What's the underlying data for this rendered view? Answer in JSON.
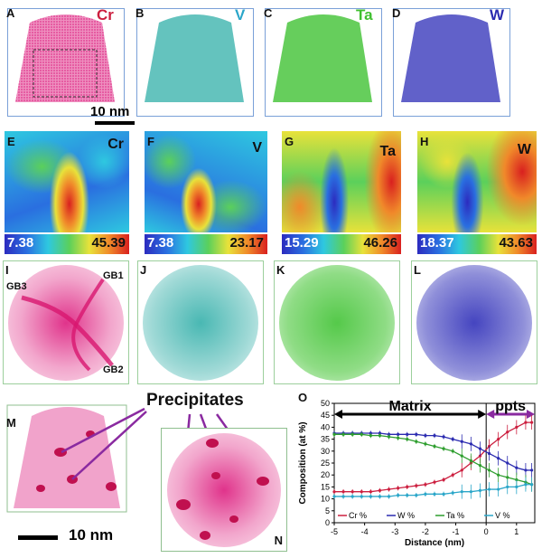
{
  "panel_labels": {
    "A": "A",
    "B": "B",
    "C": "C",
    "D": "D",
    "E": "E",
    "F": "F",
    "G": "G",
    "H": "H",
    "I": "I",
    "J": "J",
    "K": "K",
    "L": "L",
    "M": "M",
    "N": "N",
    "O": "O"
  },
  "elements": {
    "cr": {
      "name": "Cr",
      "color": "#cc1f3f"
    },
    "v": {
      "name": "V",
      "color": "#2aa6c9"
    },
    "ta": {
      "name": "Ta",
      "color": "#3fbf2f"
    },
    "w": {
      "name": "W",
      "color": "#2b2bb0"
    }
  },
  "scale_bar_top": "10 nm",
  "scale_bar_bottom": "10 nm",
  "colorbars": {
    "cr": {
      "min": "7.38",
      "max": "45.39"
    },
    "v": {
      "min": "7.38",
      "max": "23.17"
    },
    "ta": {
      "min": "15.29",
      "max": "46.26"
    },
    "w": {
      "min": "18.37",
      "max": "43.63"
    }
  },
  "grain_boundaries": {
    "gb1": "GB1",
    "gb2": "GB2",
    "gb3": "GB3"
  },
  "precipitates_label": "Precipitates",
  "chart_data": {
    "type": "line",
    "xlabel": "Distance (nm)",
    "ylabel": "Composition (at %)",
    "xlim": [
      -5,
      1.6
    ],
    "ylim": [
      0,
      50
    ],
    "xticks": [
      -5,
      -4,
      -3,
      -2,
      -1,
      0,
      1
    ],
    "yticks": [
      0,
      5,
      10,
      15,
      20,
      25,
      30,
      35,
      40,
      45,
      50
    ],
    "annotations": {
      "matrix": "Matrix",
      "ppts": "ppts"
    },
    "x": [
      -5.0,
      -4.7,
      -4.4,
      -4.1,
      -3.8,
      -3.5,
      -3.2,
      -2.9,
      -2.6,
      -2.3,
      -2.0,
      -1.7,
      -1.4,
      -1.1,
      -0.8,
      -0.5,
      -0.2,
      0.1,
      0.4,
      0.7,
      1.0,
      1.3,
      1.5
    ],
    "series": [
      {
        "name": "Cr %",
        "color": "#cc1f3f",
        "values": [
          13,
          13,
          13,
          13,
          13,
          13.5,
          14,
          14.5,
          15,
          15.5,
          16,
          17,
          18,
          20,
          22,
          25,
          28,
          32,
          35,
          38,
          40,
          42,
          42
        ]
      },
      {
        "name": "W %",
        "color": "#2b2bb0",
        "values": [
          37.5,
          37.5,
          37.5,
          37.5,
          37.5,
          37.5,
          37,
          37,
          37,
          37,
          36.5,
          36.5,
          36,
          35,
          34,
          33,
          31,
          29,
          27,
          25,
          23,
          22,
          22
        ]
      },
      {
        "name": "Ta %",
        "color": "#2e9e2e",
        "values": [
          37,
          37,
          37,
          37,
          36.5,
          36.5,
          36,
          35.5,
          35,
          34,
          33,
          32,
          31,
          30,
          28,
          26,
          24,
          22,
          20,
          19,
          18,
          17,
          16
        ]
      },
      {
        "name": "V %",
        "color": "#2aa6c9",
        "values": [
          11,
          11,
          11,
          11,
          11,
          11,
          11,
          11.5,
          11.5,
          11.5,
          12,
          12,
          12,
          12.5,
          13,
          13,
          13.5,
          14,
          14,
          15,
          15,
          16,
          16
        ]
      }
    ],
    "legend": "bottom"
  }
}
